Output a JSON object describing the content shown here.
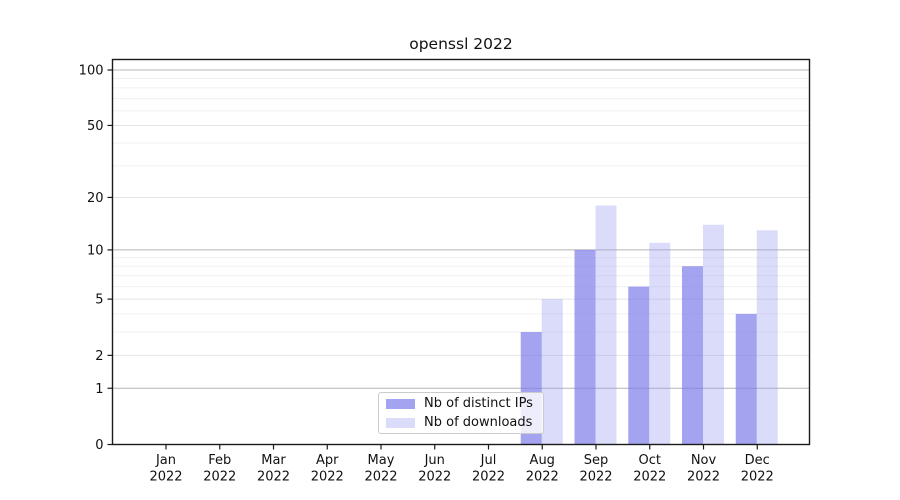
{
  "chart_data": {
    "type": "bar",
    "title": "openssl 2022",
    "xlabel": "",
    "ylabel": "",
    "year": "2022",
    "months": [
      "Jan",
      "Feb",
      "Mar",
      "Apr",
      "May",
      "Jun",
      "Jul",
      "Aug",
      "Sep",
      "Oct",
      "Nov",
      "Dec"
    ],
    "categories": [
      "Jan 2022",
      "Feb 2022",
      "Mar 2022",
      "Apr 2022",
      "May 2022",
      "Jun 2022",
      "Jul 2022",
      "Aug 2022",
      "Sep 2022",
      "Oct 2022",
      "Nov 2022",
      "Dec 2022"
    ],
    "series": [
      {
        "id": "distinct-ips",
        "name": "Nb of distinct IPs",
        "color": "#a9a9f0",
        "fill": "rgba(124,124,233,0.70)",
        "values": [
          0,
          0,
          0,
          0,
          0,
          0,
          0,
          3,
          10,
          6,
          8,
          4
        ]
      },
      {
        "id": "downloads",
        "name": "Nb of downloads",
        "color": "#dadaf9",
        "fill": "rgba(150,154,242,0.35)",
        "values": [
          0,
          0,
          0,
          0,
          0,
          0,
          0,
          5,
          18,
          11,
          14,
          13
        ]
      }
    ],
    "y_axis": {
      "scale": "symlog-ln(1+v)",
      "ticks": [
        0,
        1,
        2,
        5,
        10,
        20,
        50,
        100
      ],
      "minor_ticks": [
        3,
        4,
        6,
        7,
        8,
        9,
        30,
        40,
        60,
        70,
        80,
        90
      ],
      "ylim": [
        0,
        113
      ]
    },
    "grid": true,
    "legend_position": "lower center"
  },
  "colors": {
    "decade_gridline": "#b4b4b4",
    "labeled_gridline": "#e4e4e4",
    "minor_gridline": "#f0f0f0",
    "axis": "#1a1a1a",
    "text": "#111111",
    "legend_border": "#cbcbcb"
  }
}
